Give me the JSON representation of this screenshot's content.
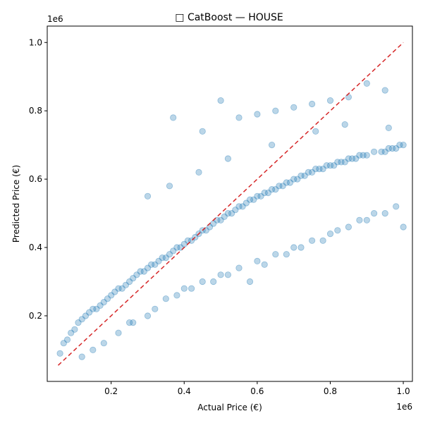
{
  "chart_data": {
    "type": "scatter",
    "title": "□ CatBoost — HOUSE",
    "xlabel": "Actual Price (€)",
    "ylabel": "Predicted Price (€)",
    "x_offset_label": "1e6",
    "y_offset_label": "1e6",
    "xlim": [
      0.025,
      1.025
    ],
    "ylim": [
      0.008,
      1.048
    ],
    "xticks": [
      0.2,
      0.4,
      0.6,
      0.8,
      1.0
    ],
    "xtick_labels": [
      "0.2",
      "0.4",
      "0.6",
      "0.8",
      "1.0"
    ],
    "yticks": [
      0.2,
      0.4,
      0.6,
      0.8,
      1.0
    ],
    "ytick_labels": [
      "0.2",
      "0.4",
      "0.6",
      "0.8",
      "1.0"
    ],
    "grid": false,
    "colors": {
      "points": "#1f77b4",
      "reference_line": "#d62728"
    },
    "reference_line": {
      "x": [
        0.055,
        1.0
      ],
      "y": [
        0.055,
        1.0
      ],
      "style": "dashed"
    },
    "series": [
      {
        "alpha": 0.3,
        "x": [
          0.06,
          0.07,
          0.08,
          0.09,
          0.1,
          0.11,
          0.12,
          0.13,
          0.14,
          0.15,
          0.16,
          0.17,
          0.18,
          0.19,
          0.2,
          0.21,
          0.22,
          0.23,
          0.24,
          0.25,
          0.26,
          0.27,
          0.28,
          0.29,
          0.3,
          0.31,
          0.32,
          0.33,
          0.34,
          0.35,
          0.36,
          0.37,
          0.38,
          0.39,
          0.4,
          0.41,
          0.42,
          0.43,
          0.44,
          0.45,
          0.46,
          0.47,
          0.48,
          0.49,
          0.5,
          0.51,
          0.52,
          0.53,
          0.54,
          0.55,
          0.56,
          0.57,
          0.58,
          0.59,
          0.6,
          0.61,
          0.62,
          0.63,
          0.64,
          0.65,
          0.66,
          0.67,
          0.68,
          0.69,
          0.7,
          0.71,
          0.72,
          0.73,
          0.74,
          0.75,
          0.76,
          0.77,
          0.78,
          0.79,
          0.8,
          0.81,
          0.82,
          0.83,
          0.84,
          0.85,
          0.86,
          0.87,
          0.88,
          0.89,
          0.9,
          0.92,
          0.94,
          0.95,
          0.96,
          0.97,
          0.98,
          0.99,
          1.0,
          0.45,
          0.55,
          0.65,
          0.75,
          0.85,
          0.95,
          0.37,
          0.5,
          0.6,
          0.7,
          0.8,
          0.9,
          0.25,
          0.3,
          0.35,
          0.4,
          0.45,
          0.5,
          0.55,
          0.6,
          0.65,
          0.7,
          0.75,
          0.8,
          0.85,
          0.9,
          0.95,
          1.0,
          0.12,
          0.15,
          0.18,
          0.22,
          0.26,
          0.32,
          0.38,
          0.42,
          0.48,
          0.52,
          0.58,
          0.62,
          0.68,
          0.72,
          0.78,
          0.82,
          0.88,
          0.92,
          0.98,
          0.3,
          0.36,
          0.44,
          0.52,
          0.64,
          0.76,
          0.84,
          0.96
        ],
        "y": [
          0.09,
          0.12,
          0.13,
          0.15,
          0.16,
          0.18,
          0.19,
          0.2,
          0.21,
          0.22,
          0.22,
          0.23,
          0.24,
          0.25,
          0.26,
          0.27,
          0.28,
          0.28,
          0.29,
          0.3,
          0.31,
          0.32,
          0.33,
          0.33,
          0.34,
          0.35,
          0.35,
          0.36,
          0.37,
          0.37,
          0.38,
          0.39,
          0.4,
          0.4,
          0.41,
          0.42,
          0.42,
          0.43,
          0.44,
          0.45,
          0.45,
          0.46,
          0.47,
          0.48,
          0.48,
          0.49,
          0.5,
          0.5,
          0.51,
          0.52,
          0.52,
          0.53,
          0.54,
          0.54,
          0.55,
          0.55,
          0.56,
          0.56,
          0.57,
          0.57,
          0.58,
          0.58,
          0.59,
          0.59,
          0.6,
          0.6,
          0.61,
          0.61,
          0.62,
          0.62,
          0.63,
          0.63,
          0.63,
          0.64,
          0.64,
          0.64,
          0.65,
          0.65,
          0.65,
          0.66,
          0.66,
          0.66,
          0.67,
          0.67,
          0.67,
          0.68,
          0.68,
          0.68,
          0.69,
          0.69,
          0.69,
          0.7,
          0.7,
          0.74,
          0.78,
          0.8,
          0.82,
          0.84,
          0.86,
          0.78,
          0.83,
          0.79,
          0.81,
          0.83,
          0.88,
          0.18,
          0.2,
          0.25,
          0.28,
          0.3,
          0.32,
          0.34,
          0.36,
          0.38,
          0.4,
          0.42,
          0.44,
          0.46,
          0.48,
          0.5,
          0.46,
          0.08,
          0.1,
          0.12,
          0.15,
          0.18,
          0.22,
          0.26,
          0.28,
          0.3,
          0.32,
          0.3,
          0.35,
          0.38,
          0.4,
          0.42,
          0.45,
          0.48,
          0.5,
          0.52,
          0.55,
          0.58,
          0.62,
          0.66,
          0.7,
          0.74,
          0.76,
          0.75
        ]
      }
    ]
  }
}
